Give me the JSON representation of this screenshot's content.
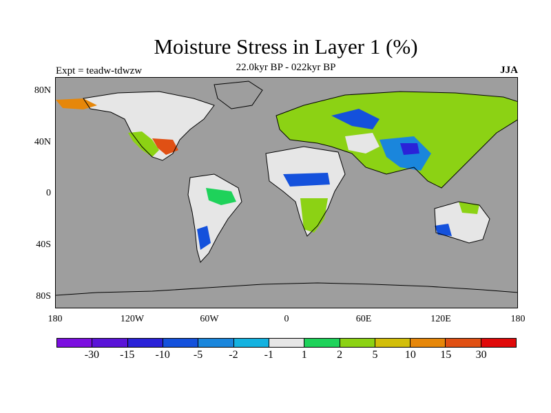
{
  "title": "Moisture Stress in Layer 1 (%)",
  "subtitle": "22.0kyr BP - 022kyr BP",
  "experiment_label": "Expt = teadw-tdwzw",
  "season_label": "JJA",
  "y_ticks": [
    "80N",
    "40N",
    "0",
    "40S",
    "80S"
  ],
  "x_ticks": [
    "180",
    "120W",
    "60W",
    "0",
    "60E",
    "120E",
    "180"
  ],
  "colorbar": {
    "colors": [
      "#7b0fe0",
      "#5a14d8",
      "#2a22d8",
      "#1451dc",
      "#1a86dc",
      "#14b2e0",
      "#e6e6e6",
      "#1ed25a",
      "#8cd214",
      "#d2be0a",
      "#e6870a",
      "#e05014",
      "#e00a0a"
    ],
    "labels": [
      "-30",
      "-15",
      "-10",
      "-5",
      "-2",
      "-1",
      "1",
      "2",
      "5",
      "10",
      "15",
      "30"
    ]
  },
  "colors": {
    "ocean": "#9e9e9e",
    "coastline": "#000000"
  }
}
